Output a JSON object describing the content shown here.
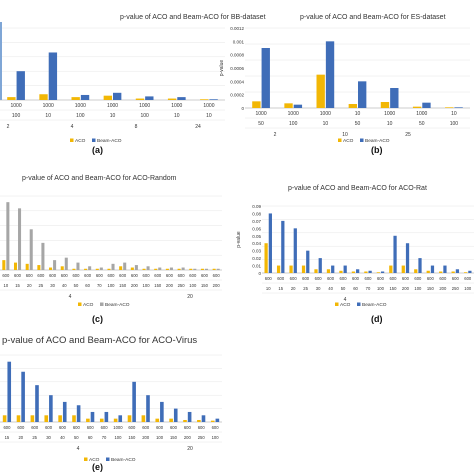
{
  "panels": [
    {
      "id": "a",
      "caption": "(a)",
      "title": "p-value of ACO and Beam-ACO for BB-dataset",
      "legend": [
        "ACO",
        "Beam-ACO"
      ]
    },
    {
      "id": "b",
      "caption": "(b)",
      "title": "p-value of ACO and Beam-ACO for ES-dataset",
      "legend": [
        "ACO",
        "Beam-ACO"
      ]
    },
    {
      "id": "c",
      "caption": "(c)",
      "title": "p-value of ACO and Beam-ACO for ACO-Random",
      "legend": [
        "ACO",
        "Beam-ACO"
      ]
    },
    {
      "id": "d",
      "caption": "(d)",
      "title": "p-value of ACO and Beam-ACO for ACO-Rat",
      "legend": [
        "ACO",
        "Beam-ACO"
      ]
    },
    {
      "id": "e",
      "caption": "(e)",
      "title": "p-value of ACO and Beam-ACO for ACO-Virus",
      "legend": [
        "ACO",
        "Beam-ACO"
      ]
    }
  ],
  "colors": {
    "aco": "#f2b705",
    "beam": "#3f6db8",
    "beam_gray": "#a6a6a6",
    "axis": "#9a9a9a",
    "grid": "#e6e6e6",
    "text": "#333333"
  },
  "chart_data": [
    {
      "panel": "a",
      "type": "bar",
      "title": "p-value of ACO and Beam-ACO for BB-dataset",
      "tick_row1": [
        "1000",
        "1000",
        "1000",
        "1000",
        "1000",
        "1000",
        "1000"
      ],
      "tick_row2": [
        "100",
        "10",
        "100",
        "10",
        "100",
        "10",
        "10"
      ],
      "group_labels": [
        "2",
        "4",
        "8",
        "24"
      ],
      "series": [
        {
          "name": "ACO",
          "values": [
            0.04,
            0.08,
            0.04,
            0.06,
            0.02,
            0.02,
            0.01
          ]
        },
        {
          "name": "Beam-ACO",
          "values": [
            0.4,
            0.66,
            0.07,
            0.1,
            0.05,
            0.04,
            0.01
          ]
        }
      ],
      "ylim": [
        0,
        1
      ],
      "overflow_bar": 1.5
    },
    {
      "panel": "b",
      "type": "bar",
      "title": "p-value of ACO and Beam-ACO for ES-dataset",
      "ylabel": "p-value",
      "yticks": [
        "0",
        "0.0002",
        "0.0004",
        "0.0006",
        "0.0008",
        "0.001",
        "0.0012"
      ],
      "ylim": [
        0,
        0.0012
      ],
      "tick_row1": [
        "1000",
        "1000",
        "1000",
        "10",
        "1000",
        "1000",
        "10"
      ],
      "tick_row2": [
        "50",
        "100",
        "10",
        "50",
        "10",
        "50",
        "100"
      ],
      "group_labels": [
        "2",
        "10",
        "25"
      ],
      "series": [
        {
          "name": "ACO",
          "values": [
            0.0001,
            7e-05,
            0.0005,
            6e-05,
            9e-05,
            2e-05,
            1e-05
          ]
        },
        {
          "name": "Beam-ACO",
          "values": [
            0.0009,
            5e-05,
            0.001,
            0.0004,
            0.0003,
            8e-05,
            1e-05
          ]
        }
      ]
    },
    {
      "panel": "c",
      "type": "bar",
      "title": "p-value of ACO and Beam-ACO for ACO-Random",
      "tick_row1": [
        "600",
        "600",
        "600",
        "600",
        "600",
        "600",
        "600",
        "600",
        "600",
        "600",
        "600",
        "600",
        "600",
        "600",
        "600",
        "600",
        "600",
        "600",
        "600"
      ],
      "tick_row2": [
        "10",
        "15",
        "20",
        "25",
        "30",
        "40",
        "50",
        "60",
        "70",
        "100",
        "150",
        "200",
        "100",
        "150",
        "200",
        "250",
        "100",
        "150",
        "200"
      ],
      "group_labels": [
        "4",
        "20"
      ],
      "series": [
        {
          "name": "ACO",
          "values": [
            0.08,
            0.06,
            0.05,
            0.04,
            0.02,
            0.03,
            0.01,
            0.01,
            0.01,
            0.01,
            0.03,
            0.02,
            0.01,
            0.01,
            0.01,
            0.01,
            0.01,
            0.01,
            0.01
          ]
        },
        {
          "name": "Beam-ACO",
          "values": [
            0.55,
            0.5,
            0.33,
            0.22,
            0.08,
            0.1,
            0.06,
            0.03,
            0.02,
            0.05,
            0.06,
            0.04,
            0.03,
            0.02,
            0.02,
            0.02,
            0.01,
            0.01,
            0.01
          ]
        }
      ],
      "ylim": [
        0,
        0.6
      ]
    },
    {
      "panel": "d",
      "type": "bar",
      "title": "p-value of ACO and Beam-ACO for ACO-Rat",
      "ylabel": "p-value",
      "yticks": [
        "0",
        "0.01",
        "0.02",
        "0.03",
        "0.04",
        "0.05",
        "0.06",
        "0.07",
        "0.08",
        "0.09"
      ],
      "ylim": [
        0,
        0.09
      ],
      "tick_row1": [
        "600",
        "600",
        "600",
        "600",
        "600",
        "600",
        "600",
        "600",
        "600",
        "600",
        "600",
        "600",
        "600",
        "600",
        "600",
        "600",
        "600"
      ],
      "tick_row2": [
        "10",
        "15",
        "20",
        "25",
        "30",
        "40",
        "50",
        "60",
        "70",
        "100",
        "150",
        "200",
        "100",
        "150",
        "200",
        "250",
        "100"
      ],
      "group_labels": [
        "4"
      ],
      "series": [
        {
          "name": "ACO",
          "values": [
            0.04,
            0.01,
            0.01,
            0.01,
            0.005,
            0.005,
            0.003,
            0.002,
            0.002,
            0.001,
            0.01,
            0.01,
            0.005,
            0.003,
            0.002,
            0.002,
            0.001
          ]
        },
        {
          "name": "Beam-ACO",
          "values": [
            0.08,
            0.07,
            0.06,
            0.03,
            0.02,
            0.01,
            0.01,
            0.005,
            0.003,
            0.002,
            0.05,
            0.04,
            0.02,
            0.01,
            0.01,
            0.005,
            0.003
          ]
        }
      ]
    },
    {
      "panel": "e",
      "type": "bar",
      "title": "p-value of ACO and Beam-ACO for ACO-Virus",
      "tick_row1": [
        "600",
        "600",
        "600",
        "600",
        "600",
        "600",
        "600",
        "600",
        "1000",
        "600",
        "600",
        "600",
        "600",
        "600",
        "600",
        "600"
      ],
      "tick_row2": [
        "15",
        "20",
        "25",
        "30",
        "40",
        "50",
        "60",
        "70",
        "100",
        "150",
        "200",
        "100",
        "150",
        "200",
        "250",
        "100"
      ],
      "group_labels": [
        "4",
        "20"
      ],
      "series": [
        {
          "name": "ACO",
          "values": [
            0.01,
            0.01,
            0.01,
            0.01,
            0.01,
            0.01,
            0.005,
            0.005,
            0.005,
            0.01,
            0.01,
            0.005,
            0.005,
            0.003,
            0.003,
            0.002
          ]
        },
        {
          "name": "Beam-ACO",
          "values": [
            0.09,
            0.075,
            0.055,
            0.04,
            0.03,
            0.025,
            0.015,
            0.015,
            0.01,
            0.06,
            0.04,
            0.03,
            0.02,
            0.015,
            0.01,
            0.005
          ]
        }
      ],
      "ylim": [
        0,
        0.1
      ]
    }
  ]
}
